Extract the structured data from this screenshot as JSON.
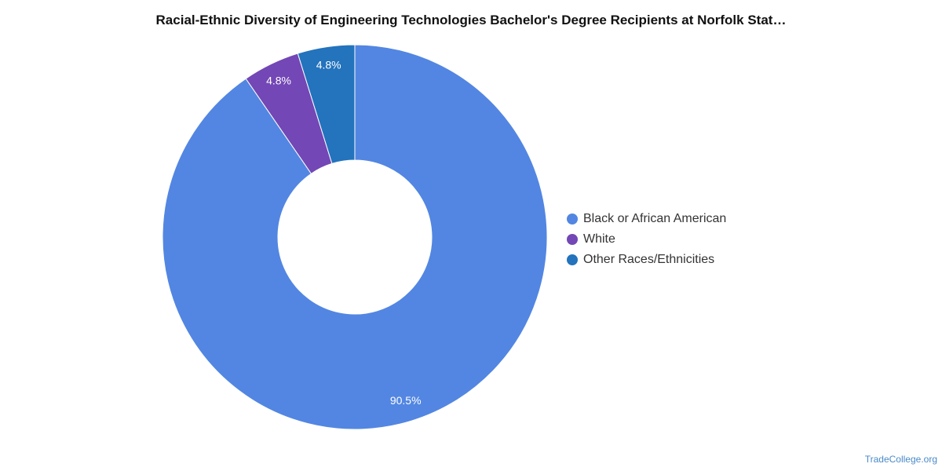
{
  "chart_data": {
    "type": "pie",
    "title": "Racial-Ethnic Diversity of Engineering Technologies Bachelor's Degree Recipients at Norfolk Stat…",
    "donut": true,
    "series": [
      {
        "name": "Black or African American",
        "value": 90.5,
        "label": "90.5%",
        "color": "#5286e2"
      },
      {
        "name": "White",
        "value": 4.8,
        "label": "4.8%",
        "color": "#7347b5"
      },
      {
        "name": "Other Races/Ethnicities",
        "value": 4.8,
        "label": "4.8%",
        "color": "#2373bd"
      }
    ],
    "legend_position": "right"
  },
  "source": "TradeCollege.org"
}
